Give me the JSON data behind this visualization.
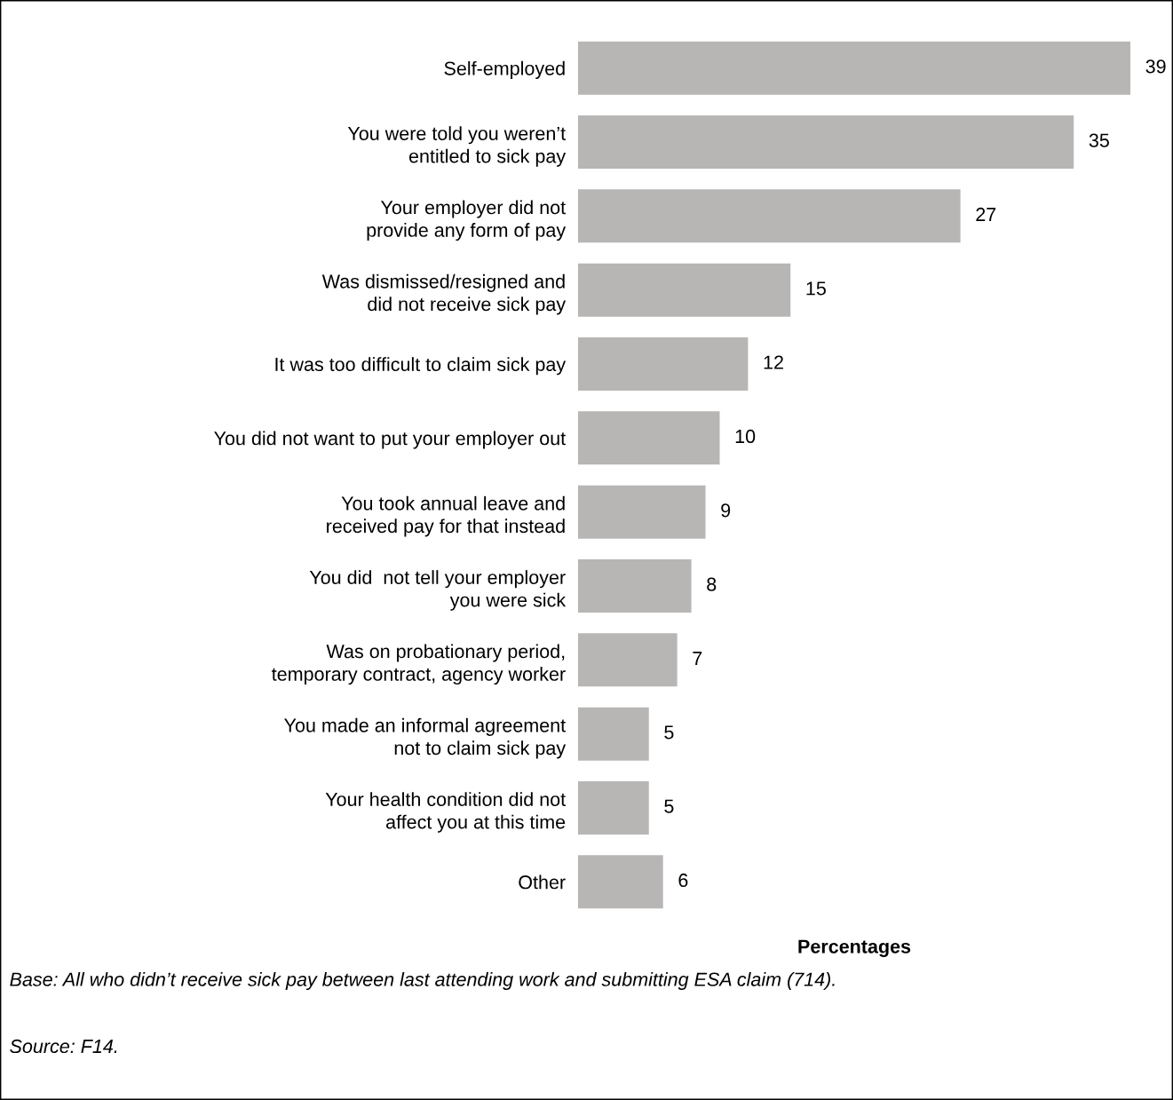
{
  "chart_data": {
    "type": "bar",
    "orientation": "horizontal",
    "xlabel": "Percentages",
    "categories": [
      "Self-employed",
      "You were told you weren’t\nentitled to sick pay",
      "Your employer did not\nprovide any form of pay",
      "Was dismissed/resigned and\ndid not receive sick pay",
      "It was too difficult to claim sick pay",
      "You did not want to put your employer out",
      "You took annual leave and\nreceived pay for that instead",
      "You did  not tell your employer\nyou were sick",
      "Was on probationary period,\ntemporary contract, agency worker",
      "You made an informal agreement\nnot to claim sick pay",
      "Your health condition did not\naffect you at this time",
      "Other"
    ],
    "values": [
      39,
      35,
      27,
      15,
      12,
      10,
      9,
      8,
      7,
      5,
      5,
      6
    ],
    "color": "#b7b6b5",
    "data_labels": true,
    "grid": false,
    "legend": false,
    "annotations": [
      "Base: All who didn’t receive sick pay between last attending work and submitting ESA claim (714).",
      "Source: F14."
    ]
  }
}
